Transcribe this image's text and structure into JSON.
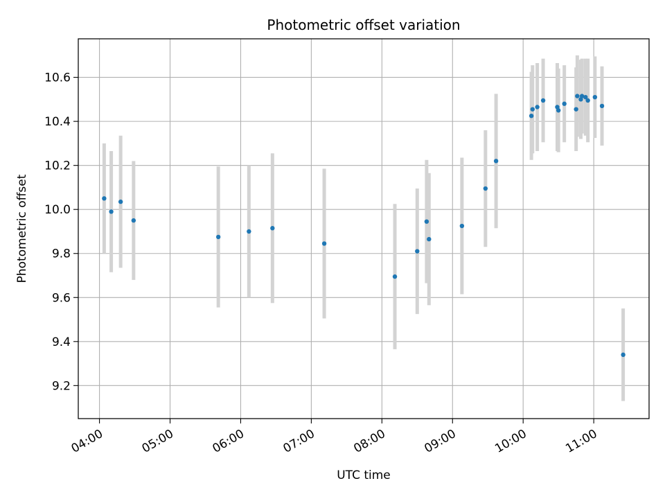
{
  "chart_data": {
    "type": "scatter",
    "title": "Photometric offset variation",
    "xlabel": "UTC time",
    "ylabel": "Photometric offset",
    "x_ticks": [
      "04:00",
      "05:00",
      "06:00",
      "07:00",
      "08:00",
      "09:00",
      "10:00",
      "11:00"
    ],
    "y_ticks": [
      "9.2",
      "9.4",
      "9.6",
      "9.8",
      "10.0",
      "10.2",
      "10.4",
      "10.6"
    ],
    "y_tick_values": [
      9.2,
      9.4,
      9.6,
      9.8,
      10.0,
      10.2,
      10.4,
      10.6
    ],
    "xlim": [
      "03:42",
      "11:47"
    ],
    "ylim": [
      9.05,
      10.775
    ],
    "grid": true,
    "point_color": "#1f77b4",
    "error_color": "#d3d3d3",
    "series": [
      {
        "points": [
          {
            "x": "04:04",
            "y": 10.05,
            "err": 0.25
          },
          {
            "x": "04:10",
            "y": 9.99,
            "err": 0.275
          },
          {
            "x": "04:18",
            "y": 10.035,
            "err": 0.3
          },
          {
            "x": "04:29",
            "y": 9.95,
            "err": 0.27
          },
          {
            "x": "05:41",
            "y": 9.875,
            "err": 0.32
          },
          {
            "x": "06:07",
            "y": 9.9,
            "err": 0.3
          },
          {
            "x": "06:27",
            "y": 9.915,
            "err": 0.34
          },
          {
            "x": "07:11",
            "y": 9.845,
            "err": 0.34
          },
          {
            "x": "08:11",
            "y": 9.695,
            "err": 0.33
          },
          {
            "x": "08:30",
            "y": 9.81,
            "err": 0.285
          },
          {
            "x": "08:38",
            "y": 9.945,
            "err": 0.28
          },
          {
            "x": "08:40",
            "y": 9.865,
            "err": 0.3
          },
          {
            "x": "09:08",
            "y": 9.925,
            "err": 0.31
          },
          {
            "x": "09:28",
            "y": 10.095,
            "err": 0.265
          },
          {
            "x": "09:37",
            "y": 10.22,
            "err": 0.305
          },
          {
            "x": "10:07",
            "y": 10.425,
            "err": 0.2
          },
          {
            "x": "10:08",
            "y": 10.455,
            "err": 0.2
          },
          {
            "x": "10:12",
            "y": 10.465,
            "err": 0.2
          },
          {
            "x": "10:17",
            "y": 10.495,
            "err": 0.19
          },
          {
            "x": "10:29",
            "y": 10.465,
            "err": 0.2
          },
          {
            "x": "10:30",
            "y": 10.45,
            "err": 0.19
          },
          {
            "x": "10:35",
            "y": 10.48,
            "err": 0.175
          },
          {
            "x": "10:45",
            "y": 10.455,
            "err": 0.19
          },
          {
            "x": "10:46",
            "y": 10.515,
            "err": 0.185
          },
          {
            "x": "10:49",
            "y": 10.5,
            "err": 0.18
          },
          {
            "x": "10:50",
            "y": 10.515,
            "err": 0.17
          },
          {
            "x": "10:53",
            "y": 10.51,
            "err": 0.175
          },
          {
            "x": "10:55",
            "y": 10.495,
            "err": 0.19
          },
          {
            "x": "11:01",
            "y": 10.51,
            "err": 0.185
          },
          {
            "x": "11:07",
            "y": 10.47,
            "err": 0.18
          },
          {
            "x": "11:25",
            "y": 9.34,
            "err": 0.21
          }
        ]
      }
    ]
  }
}
